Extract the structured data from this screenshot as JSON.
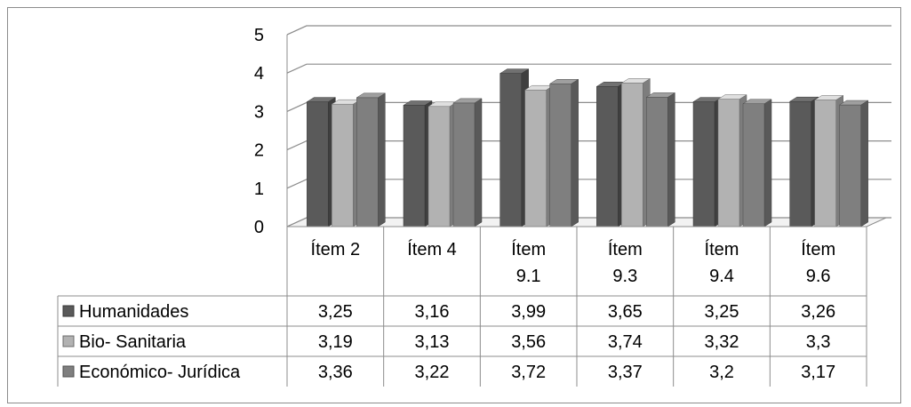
{
  "chart_data": {
    "type": "bar",
    "title": "",
    "xlabel": "",
    "ylabel": "",
    "ylim": [
      0,
      5
    ],
    "yticks": [
      "0",
      "1",
      "2",
      "3",
      "4",
      "5"
    ],
    "grid": true,
    "categories": [
      [
        "Ítem 2"
      ],
      [
        "Ítem 4"
      ],
      [
        "Ítem",
        "9.1"
      ],
      [
        "Ítem",
        "9.3"
      ],
      [
        "Ítem",
        "9.4"
      ],
      [
        "Ítem",
        "9.6"
      ]
    ],
    "series": [
      {
        "name": "Humanidades",
        "color": "#5a5a5a",
        "values": [
          3.25,
          3.16,
          3.99,
          3.65,
          3.25,
          3.26
        ],
        "labels": [
          "3,25",
          "3,16",
          "3,99",
          "3,65",
          "3,25",
          "3,26"
        ]
      },
      {
        "name": "Bio- Sanitaria",
        "color": "#b2b2b2",
        "values": [
          3.19,
          3.13,
          3.56,
          3.74,
          3.32,
          3.3
        ],
        "labels": [
          "3,19",
          "3,13",
          "3,56",
          "3,74",
          "3,32",
          "3,3"
        ]
      },
      {
        "name": "Económico- Jurídica",
        "color": "#7f7f7f",
        "values": [
          3.36,
          3.22,
          3.72,
          3.37,
          3.2,
          3.17
        ],
        "labels": [
          "3,36",
          "3,22",
          "3,72",
          "3,37",
          "3,2",
          "3,17"
        ]
      }
    ],
    "legend": "data-table"
  }
}
